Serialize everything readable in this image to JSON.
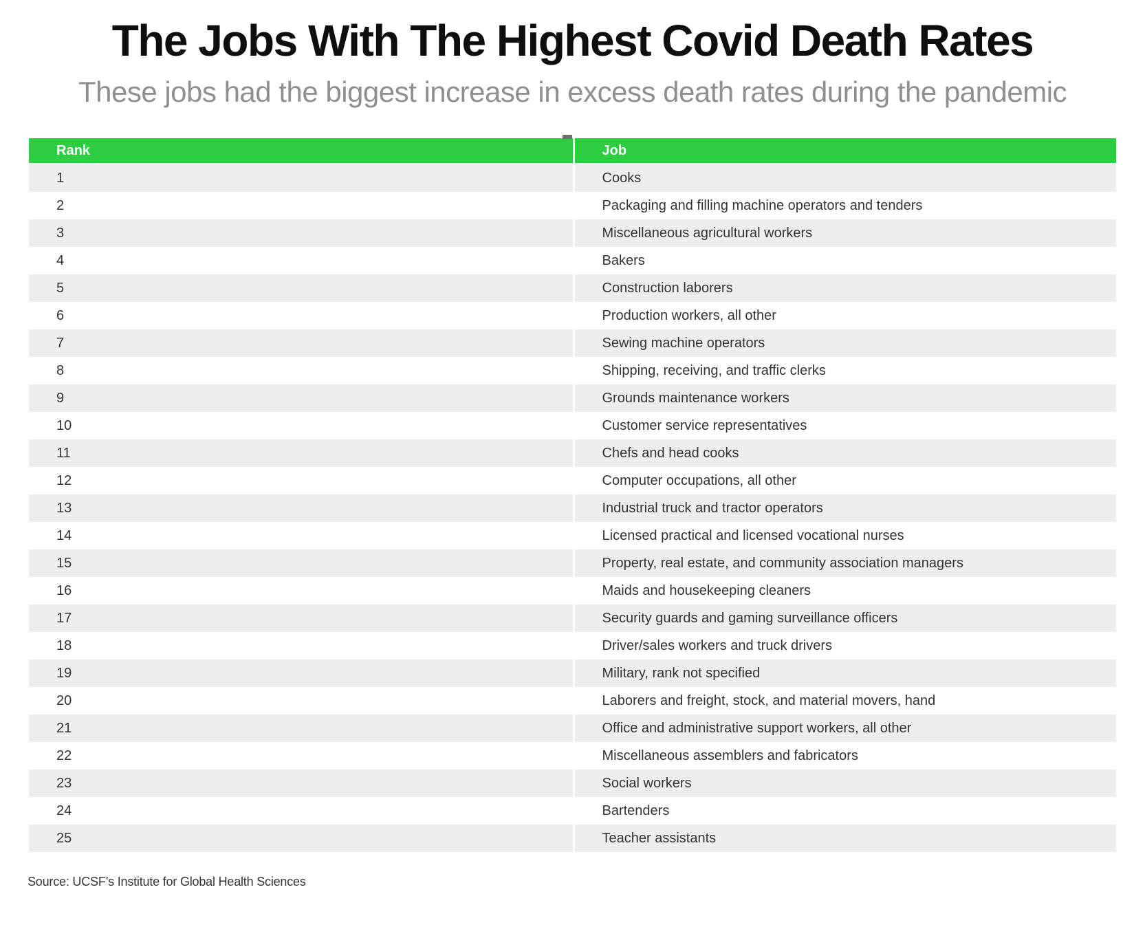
{
  "header": {
    "title": "The Jobs With The Highest Covid Death Rates",
    "subtitle": "These jobs had the biggest increase in excess death rates during the pandemic"
  },
  "table": {
    "columns": [
      "Rank",
      "Job"
    ],
    "rows": [
      {
        "rank": "1",
        "job": "Cooks"
      },
      {
        "rank": "2",
        "job": "Packaging and filling machine operators and tenders"
      },
      {
        "rank": "3",
        "job": "Miscellaneous agricultural workers"
      },
      {
        "rank": "4",
        "job": "Bakers"
      },
      {
        "rank": "5",
        "job": "Construction laborers"
      },
      {
        "rank": "6",
        "job": "Production workers, all other"
      },
      {
        "rank": "7",
        "job": "Sewing machine operators"
      },
      {
        "rank": "8",
        "job": "Shipping, receiving, and traffic clerks"
      },
      {
        "rank": "9",
        "job": "Grounds maintenance workers"
      },
      {
        "rank": "10",
        "job": "Customer service representatives"
      },
      {
        "rank": "11",
        "job": "Chefs and head cooks"
      },
      {
        "rank": "12",
        "job": "Computer occupations, all other"
      },
      {
        "rank": "13",
        "job": "Industrial truck and tractor operators"
      },
      {
        "rank": "14",
        "job": "Licensed practical and licensed vocational nurses"
      },
      {
        "rank": "15",
        "job": "Property, real estate, and community association managers"
      },
      {
        "rank": "16",
        "job": "Maids and housekeeping cleaners"
      },
      {
        "rank": "17",
        "job": "Security guards and gaming surveillance officers"
      },
      {
        "rank": "18",
        "job": "Driver/sales workers and truck drivers"
      },
      {
        "rank": "19",
        "job": "Military, rank not specified"
      },
      {
        "rank": "20",
        "job": "Laborers and freight, stock, and material movers, hand"
      },
      {
        "rank": "21",
        "job": "Office and administrative support workers, all other"
      },
      {
        "rank": "22",
        "job": "Miscellaneous assemblers and fabricators"
      },
      {
        "rank": "23",
        "job": "Social workers"
      },
      {
        "rank": "24",
        "job": "Bartenders"
      },
      {
        "rank": "25",
        "job": "Teacher assistants"
      }
    ]
  },
  "footer": {
    "source": "Source: UCSF’s Institute for Global Health Sciences"
  },
  "colors": {
    "header_green": "#2ecc40",
    "row_alt": "#eeeeee",
    "title_color": "#0e0e0e",
    "subtitle_gray": "#8f8f8f",
    "cell_text": "#333333"
  }
}
